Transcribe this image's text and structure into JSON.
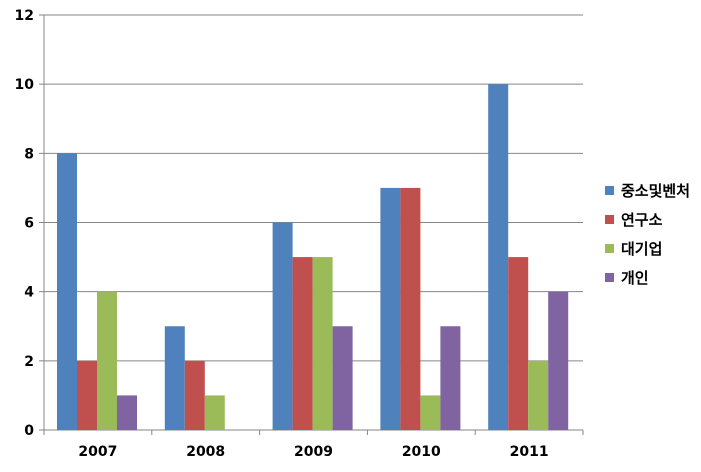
{
  "chart_data": {
    "type": "bar",
    "title": "",
    "xlabel": "",
    "ylabel": "",
    "categories": [
      "2007",
      "2008",
      "2009",
      "2010",
      "2011"
    ],
    "series": [
      {
        "name": "중소및벤처",
        "color": "#4F81BD",
        "values": [
          8,
          3,
          6,
          7,
          10
        ]
      },
      {
        "name": "연구소",
        "color": "#C0504D",
        "values": [
          2,
          2,
          5,
          7,
          5
        ]
      },
      {
        "name": "대기업",
        "color": "#9BBB59",
        "values": [
          4,
          1,
          5,
          1,
          2
        ]
      },
      {
        "name": "개인",
        "color": "#8064A2",
        "values": [
          1,
          0,
          3,
          3,
          4
        ]
      }
    ],
    "ylim": [
      0,
      12
    ],
    "yticks": [
      0,
      2,
      4,
      6,
      8,
      10,
      12
    ],
    "grid": true,
    "legend_position": "right"
  }
}
